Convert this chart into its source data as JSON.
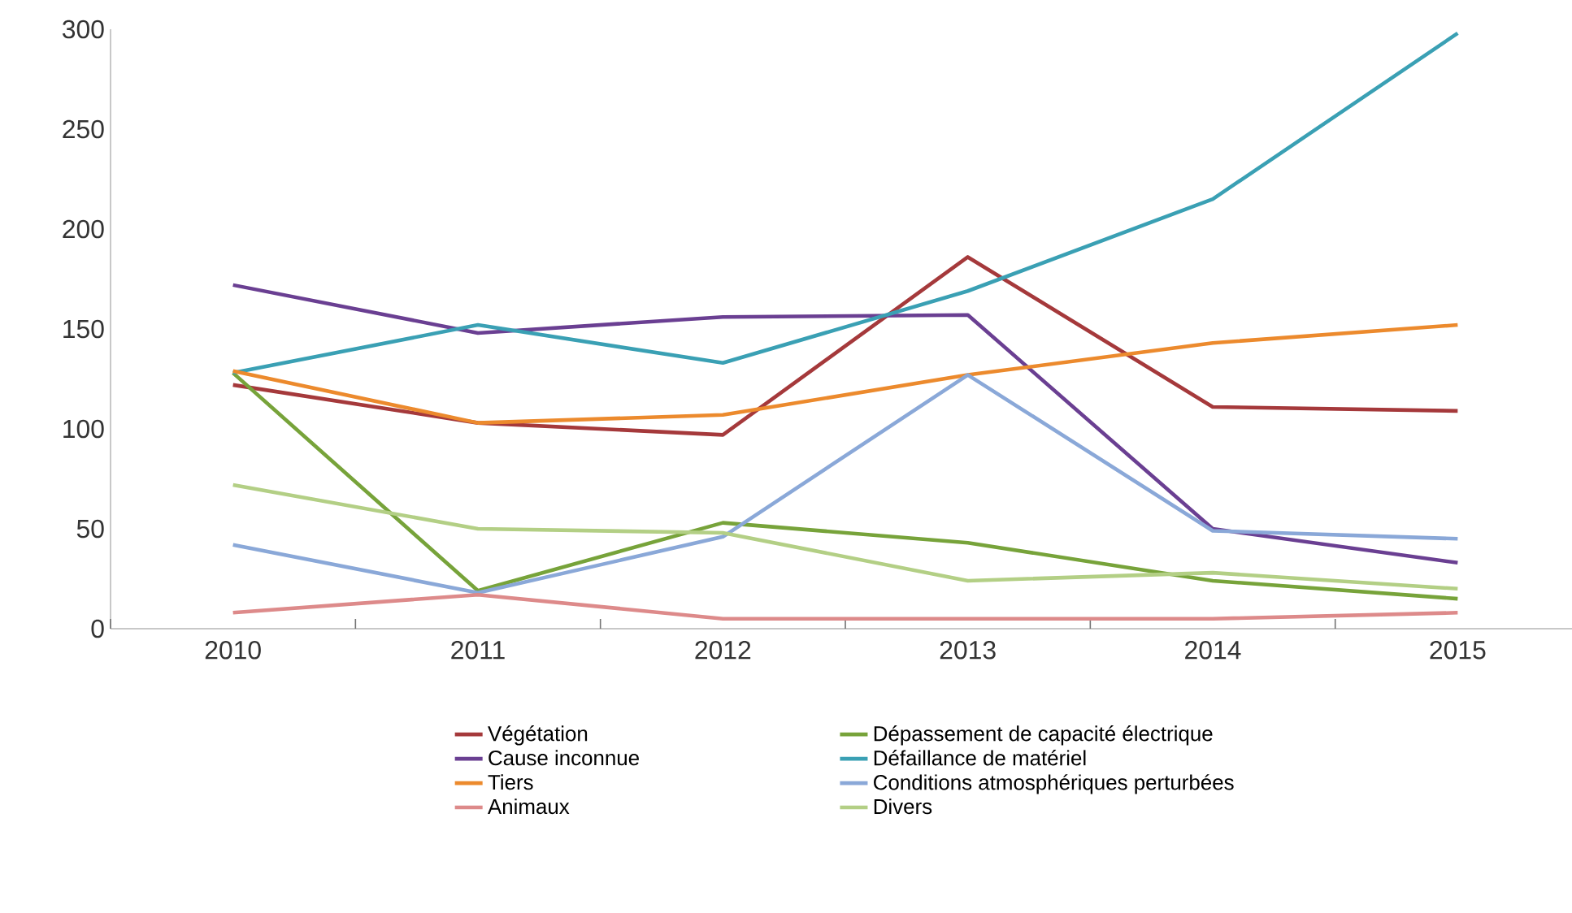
{
  "chart_data": {
    "type": "line",
    "categories": [
      "2010",
      "2011",
      "2012",
      "2013",
      "2014",
      "2015"
    ],
    "ylim": [
      0,
      300
    ],
    "yticks": [
      0,
      50,
      100,
      150,
      200,
      250,
      300
    ],
    "grid": false,
    "legend": "bottom",
    "marker": "none",
    "line_style": "solid",
    "series": [
      {
        "name": "Végétation",
        "color": "#a5393b",
        "values": [
          122,
          103,
          97,
          186,
          111,
          109
        ]
      },
      {
        "name": "Dépassement de capacité électrique",
        "color": "#77a33a",
        "values": [
          128,
          19,
          53,
          43,
          24,
          15
        ]
      },
      {
        "name": "Cause inconnue",
        "color": "#6a3f92",
        "values": [
          172,
          148,
          156,
          157,
          50,
          33
        ]
      },
      {
        "name": "Défaillance de matériel",
        "color": "#3aa0b4",
        "values": [
          128,
          152,
          133,
          169,
          215,
          298
        ]
      },
      {
        "name": "Tiers",
        "color": "#ec8a2d",
        "values": [
          129,
          103,
          107,
          127,
          143,
          152
        ]
      },
      {
        "name": "Conditions atmosphériques perturbées",
        "color": "#8aa8d8",
        "values": [
          42,
          18,
          46,
          127,
          49,
          45
        ]
      },
      {
        "name": "Animaux",
        "color": "#dd8a8a",
        "values": [
          8,
          17,
          5,
          5,
          5,
          8
        ]
      },
      {
        "name": "Divers",
        "color": "#b3cf85",
        "values": [
          72,
          50,
          48,
          24,
          28,
          20
        ]
      }
    ]
  }
}
